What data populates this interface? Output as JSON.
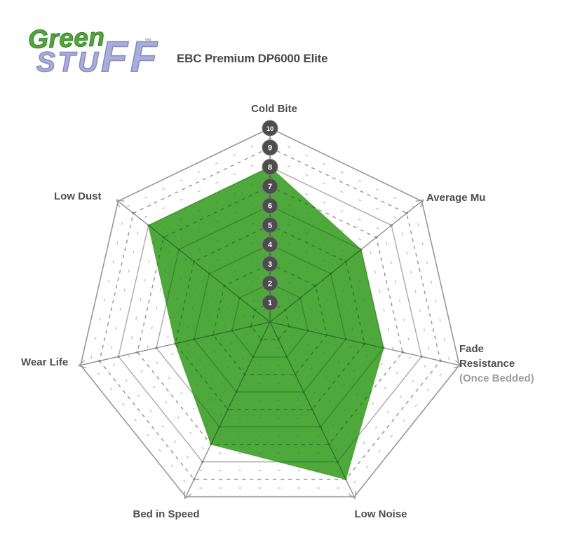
{
  "logo": {
    "green": "Green",
    "stuff_top": "STU",
    "stuff_ff": "FF",
    "tm": "™"
  },
  "title": "EBC Premium DP6000 Elite",
  "chart_data": {
    "type": "radar",
    "title": "EBC Premium DP6000 Elite",
    "min": 0,
    "max": 10,
    "tick_labels": [
      "1",
      "2",
      "3",
      "4",
      "5",
      "6",
      "7",
      "8",
      "9",
      "10"
    ],
    "grid": {
      "rings": 10,
      "style": "even-solid, odd-dashed, half-unit sparse dashes",
      "shape": "heptagon"
    },
    "axes": [
      {
        "label": "Cold Bite",
        "value": 8
      },
      {
        "label": "Average Mu",
        "value": 6
      },
      {
        "label": "Fade Resistance",
        "note": "(Once Bedded)",
        "value": 6
      },
      {
        "label": "Low Noise",
        "value": 9
      },
      {
        "label": "Bed in Speed",
        "value": 7
      },
      {
        "label": "Wear Life",
        "value": 5
      },
      {
        "label": "Low Dust",
        "value": 8
      }
    ],
    "series": [
      {
        "name": "EBC Premium DP6000 Elite",
        "values": [
          8,
          6,
          6,
          9,
          7,
          5,
          8
        ],
        "fill_color": "#4fa83c"
      }
    ],
    "colors": {
      "grid_gray": "#8f8f8f",
      "grid_gray_solid": "#a8a8a8",
      "grid_dark_green": "#2f7a26",
      "tick_circle": "#4d4d4d",
      "tick_text": "#ffffff",
      "label_text": "#4e4e4e",
      "note_text": "#9e9e9e",
      "logo_green": "#54a63c",
      "logo_purple": "#a9aed8"
    }
  }
}
